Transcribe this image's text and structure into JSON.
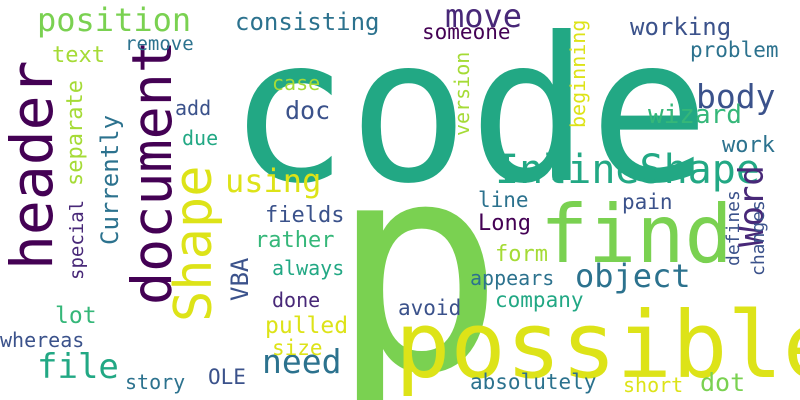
{
  "word_cloud": {
    "words": [
      {
        "text": "code",
        "color": "#22a884"
      },
      {
        "text": "p",
        "color": "#7ad151"
      },
      {
        "text": "possible",
        "color": "#dde318"
      },
      {
        "text": "find",
        "color": "#7ad151"
      },
      {
        "text": "document",
        "color": "#440154"
      },
      {
        "text": "header",
        "color": "#440154"
      },
      {
        "text": "Shape",
        "color": "#dde318"
      },
      {
        "text": "InlineShape",
        "color": "#22a884"
      },
      {
        "text": "position",
        "color": "#7ad151"
      },
      {
        "text": "move",
        "color": "#482878"
      },
      {
        "text": "body",
        "color": "#3b528b"
      },
      {
        "text": "object",
        "color": "#2c728e"
      },
      {
        "text": "Word",
        "color": "#482878"
      },
      {
        "text": "using",
        "color": "#dde318"
      },
      {
        "text": "need",
        "color": "#2c728e"
      },
      {
        "text": "file",
        "color": "#22a884"
      },
      {
        "text": "consisting",
        "color": "#2c728e"
      },
      {
        "text": "working",
        "color": "#3b528b"
      },
      {
        "text": "someone",
        "color": "#440154"
      },
      {
        "text": "problem",
        "color": "#2c728e"
      },
      {
        "text": "remove",
        "color": "#2c728e"
      },
      {
        "text": "text",
        "color": "#a5db36"
      },
      {
        "text": "case",
        "color": "#a5db36"
      },
      {
        "text": "doc",
        "color": "#3b528b"
      },
      {
        "text": "add",
        "color": "#3b528b"
      },
      {
        "text": "due",
        "color": "#22a884"
      },
      {
        "text": "wizard",
        "color": "#35b779"
      },
      {
        "text": "work",
        "color": "#2c728e"
      },
      {
        "text": "version",
        "color": "#a5db36"
      },
      {
        "text": "beginning",
        "color": "#dde318"
      },
      {
        "text": "separate",
        "color": "#a5db36"
      },
      {
        "text": "Currently",
        "color": "#2c728e"
      },
      {
        "text": "special",
        "color": "#482878"
      },
      {
        "text": "fields",
        "color": "#3b528b"
      },
      {
        "text": "rather",
        "color": "#35b779"
      },
      {
        "text": "always",
        "color": "#22a884"
      },
      {
        "text": "VBA",
        "color": "#3b528b"
      },
      {
        "text": "done",
        "color": "#482878"
      },
      {
        "text": "pulled",
        "color": "#dde318"
      },
      {
        "text": "size",
        "color": "#dde318"
      },
      {
        "text": "lot",
        "color": "#35b779"
      },
      {
        "text": "whereas",
        "color": "#3b528b"
      },
      {
        "text": "story",
        "color": "#2c728e"
      },
      {
        "text": "OLE",
        "color": "#3b528b"
      },
      {
        "text": "line",
        "color": "#2c728e"
      },
      {
        "text": "Long",
        "color": "#440154"
      },
      {
        "text": "pain",
        "color": "#3b528b"
      },
      {
        "text": "form",
        "color": "#a5db36"
      },
      {
        "text": "appears",
        "color": "#2c728e"
      },
      {
        "text": "company",
        "color": "#22a884"
      },
      {
        "text": "avoid",
        "color": "#3b528b"
      },
      {
        "text": "absolutely",
        "color": "#2c728e"
      },
      {
        "text": "short",
        "color": "#dde318"
      },
      {
        "text": "dot",
        "color": "#7ad151"
      },
      {
        "text": "defines",
        "color": "#3b528b"
      },
      {
        "text": "changes",
        "color": "#3b528b"
      }
    ]
  }
}
